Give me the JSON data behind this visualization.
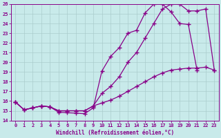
{
  "xlabel": "Windchill (Refroidissement éolien,°C)",
  "xlim": [
    -0.5,
    23.5
  ],
  "ylim": [
    14,
    26
  ],
  "xticks": [
    0,
    1,
    2,
    3,
    4,
    5,
    6,
    7,
    8,
    9,
    10,
    11,
    12,
    13,
    14,
    15,
    16,
    17,
    18,
    19,
    20,
    21,
    22,
    23
  ],
  "yticks": [
    14,
    15,
    16,
    17,
    18,
    19,
    20,
    21,
    22,
    23,
    24,
    25,
    26
  ],
  "background_color": "#c8eaea",
  "line_color": "#880088",
  "grid_color": "#aacccc",
  "line1_x": [
    0,
    1,
    2,
    3,
    4,
    5,
    6,
    7,
    8,
    9,
    10,
    11,
    12,
    13,
    14,
    15,
    16,
    17,
    18,
    19,
    20,
    21
  ],
  "line1_y": [
    15.9,
    15.1,
    15.3,
    15.5,
    15.4,
    14.85,
    14.8,
    14.75,
    14.7,
    15.3,
    19.1,
    20.6,
    21.5,
    23.0,
    23.3,
    25.1,
    26.0,
    26.0,
    25.2,
    24.0,
    23.9,
    19.2
  ],
  "line2_x": [
    0,
    1,
    2,
    3,
    4,
    5,
    6,
    7,
    8,
    9,
    10,
    11,
    12,
    13,
    14,
    15,
    16,
    17,
    18,
    19,
    20,
    21,
    22,
    23
  ],
  "line2_y": [
    15.9,
    15.1,
    15.3,
    15.5,
    15.4,
    15.0,
    15.0,
    15.0,
    15.0,
    15.5,
    16.8,
    17.5,
    18.5,
    20.0,
    21.0,
    22.5,
    24.0,
    25.5,
    26.0,
    26.0,
    25.3,
    25.3,
    25.5,
    19.2
  ],
  "line3_x": [
    0,
    1,
    2,
    3,
    4,
    5,
    6,
    7,
    8,
    9,
    10,
    11,
    12,
    13,
    14,
    15,
    16,
    17,
    18,
    19,
    20,
    21,
    22,
    23
  ],
  "line3_y": [
    15.9,
    15.1,
    15.3,
    15.5,
    15.4,
    15.0,
    15.0,
    15.0,
    15.0,
    15.5,
    15.8,
    16.1,
    16.5,
    17.0,
    17.5,
    18.0,
    18.5,
    18.9,
    19.2,
    19.3,
    19.4,
    19.4,
    19.5,
    19.2
  ]
}
